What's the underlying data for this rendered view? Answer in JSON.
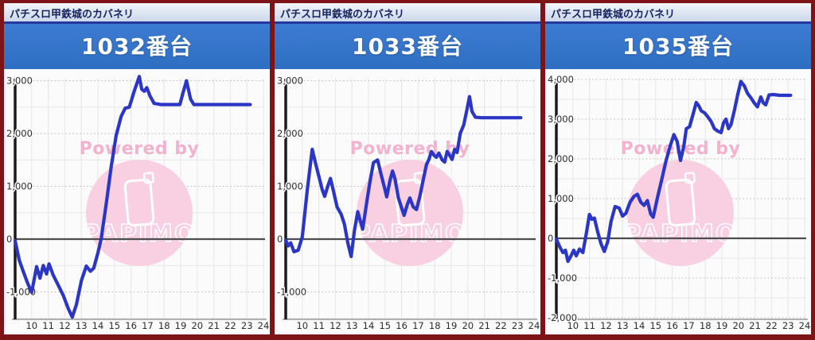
{
  "app_title": "パチスロ甲鉄城のカバネリ",
  "watermark": {
    "powered_by": "Powered by",
    "logo_text": "PAPIMO",
    "text_color": "#f3abc9",
    "circle_color": "#f8d0e2"
  },
  "colors": {
    "frame_border": "#7d1418",
    "header_blue": "#3273c9",
    "topbar_text": "#15245f",
    "line_blue": "#2b36c6",
    "axis_black": "#1b1b1b",
    "zero_line": "#4d4d4d",
    "grid_light": "#e7e7e7",
    "grid_dashed": "#c4c4c4",
    "tick_text": "#2b2b2b"
  },
  "panels": [
    {
      "machine_title": "1032番台",
      "chart_data": {
        "type": "line",
        "title": "1032番台",
        "xlabel": "",
        "ylabel": "",
        "grid": true,
        "xticks": [
          10,
          11,
          12,
          13,
          14,
          15,
          16,
          17,
          18,
          19,
          20,
          21,
          22,
          23,
          24
        ],
        "xlim": [
          9,
          24.3
        ],
        "ylim": [
          -1520,
          3040
        ],
        "yticks": [
          {
            "v": 3000,
            "label": "3,000"
          },
          {
            "v": 2000,
            "label": "2,000"
          },
          {
            "v": 1000,
            "label": "1,000"
          },
          {
            "v": 0,
            "label": "0"
          },
          {
            "v": -1000,
            "label": "-1,000"
          }
        ],
        "points": [
          [
            9.0,
            -30
          ],
          [
            9.25,
            -400
          ],
          [
            9.5,
            -620
          ],
          [
            9.75,
            -830
          ],
          [
            10.0,
            -1010
          ],
          [
            10.3,
            -520
          ],
          [
            10.5,
            -740
          ],
          [
            10.7,
            -500
          ],
          [
            10.9,
            -660
          ],
          [
            11.05,
            -470
          ],
          [
            11.3,
            -680
          ],
          [
            11.6,
            -870
          ],
          [
            11.9,
            -1060
          ],
          [
            12.2,
            -1310
          ],
          [
            12.45,
            -1480
          ],
          [
            12.7,
            -1240
          ],
          [
            13.0,
            -790
          ],
          [
            13.3,
            -510
          ],
          [
            13.55,
            -610
          ],
          [
            13.75,
            -550
          ],
          [
            14.0,
            -260
          ],
          [
            14.2,
            10
          ],
          [
            14.5,
            660
          ],
          [
            14.8,
            1360
          ],
          [
            15.1,
            1960
          ],
          [
            15.4,
            2320
          ],
          [
            15.65,
            2480
          ],
          [
            15.9,
            2500
          ],
          [
            16.2,
            2810
          ],
          [
            16.5,
            3080
          ],
          [
            16.65,
            2840
          ],
          [
            16.8,
            2800
          ],
          [
            16.95,
            2870
          ],
          [
            17.15,
            2710
          ],
          [
            17.4,
            2570
          ],
          [
            17.8,
            2550
          ],
          [
            18.4,
            2550
          ],
          [
            18.95,
            2550
          ],
          [
            19.15,
            2780
          ],
          [
            19.35,
            3000
          ],
          [
            19.6,
            2650
          ],
          [
            19.8,
            2550
          ],
          [
            20.5,
            2550
          ],
          [
            21.5,
            2550
          ],
          [
            22.5,
            2550
          ],
          [
            23.2,
            2550
          ]
        ]
      }
    },
    {
      "machine_title": "1033番台",
      "chart_data": {
        "type": "line",
        "title": "1033番台",
        "xlabel": "",
        "ylabel": "",
        "grid": true,
        "xticks": [
          10,
          11,
          12,
          13,
          14,
          15,
          16,
          17,
          18,
          19,
          20,
          21,
          22,
          23,
          24
        ],
        "xlim": [
          9,
          24.3
        ],
        "ylim": [
          -1520,
          3040
        ],
        "yticks": [
          {
            "v": 3000,
            "label": "3,000"
          },
          {
            "v": 2000,
            "label": "2,000"
          },
          {
            "v": 1000,
            "label": "1,000"
          },
          {
            "v": 0,
            "label": "0"
          },
          {
            "v": -1000,
            "label": "-1,000"
          }
        ],
        "points": [
          [
            9.0,
            -20
          ],
          [
            9.15,
            -130
          ],
          [
            9.3,
            -70
          ],
          [
            9.5,
            -240
          ],
          [
            9.75,
            -210
          ],
          [
            10.0,
            40
          ],
          [
            10.3,
            920
          ],
          [
            10.6,
            1700
          ],
          [
            10.8,
            1440
          ],
          [
            11.0,
            1190
          ],
          [
            11.2,
            940
          ],
          [
            11.35,
            810
          ],
          [
            11.55,
            1010
          ],
          [
            11.7,
            1150
          ],
          [
            11.9,
            890
          ],
          [
            12.1,
            610
          ],
          [
            12.35,
            470
          ],
          [
            12.55,
            280
          ],
          [
            12.75,
            -70
          ],
          [
            12.95,
            -330
          ],
          [
            13.15,
            160
          ],
          [
            13.35,
            520
          ],
          [
            13.5,
            350
          ],
          [
            13.65,
            190
          ],
          [
            13.9,
            710
          ],
          [
            14.1,
            1110
          ],
          [
            14.3,
            1450
          ],
          [
            14.55,
            1500
          ],
          [
            14.75,
            1240
          ],
          [
            14.95,
            990
          ],
          [
            15.1,
            800
          ],
          [
            15.3,
            1110
          ],
          [
            15.45,
            1290
          ],
          [
            15.6,
            1140
          ],
          [
            15.8,
            790
          ],
          [
            16.0,
            590
          ],
          [
            16.15,
            450
          ],
          [
            16.35,
            660
          ],
          [
            16.5,
            780
          ],
          [
            16.7,
            610
          ],
          [
            16.9,
            560
          ],
          [
            17.1,
            810
          ],
          [
            17.3,
            1110
          ],
          [
            17.5,
            1410
          ],
          [
            17.65,
            1510
          ],
          [
            17.8,
            1660
          ],
          [
            17.95,
            1590
          ],
          [
            18.1,
            1550
          ],
          [
            18.25,
            1630
          ],
          [
            18.45,
            1500
          ],
          [
            18.6,
            1460
          ],
          [
            18.75,
            1660
          ],
          [
            18.9,
            1590
          ],
          [
            19.05,
            1510
          ],
          [
            19.2,
            1700
          ],
          [
            19.35,
            1640
          ],
          [
            19.55,
            2010
          ],
          [
            19.75,
            2160
          ],
          [
            19.95,
            2460
          ],
          [
            20.1,
            2700
          ],
          [
            20.25,
            2420
          ],
          [
            20.45,
            2310
          ],
          [
            20.8,
            2300
          ],
          [
            21.6,
            2300
          ],
          [
            22.4,
            2300
          ],
          [
            23.2,
            2300
          ]
        ]
      }
    },
    {
      "machine_title": "1035番台",
      "chart_data": {
        "type": "line",
        "title": "1035番台",
        "xlabel": "",
        "ylabel": "",
        "grid": true,
        "xticks": [
          10,
          11,
          12,
          13,
          14,
          15,
          16,
          17,
          18,
          19,
          20,
          21,
          22,
          23,
          24
        ],
        "xlim": [
          9,
          24.3
        ],
        "ylim": [
          -2040,
          4020
        ],
        "yticks": [
          {
            "v": 4000,
            "label": "4,000"
          },
          {
            "v": 3000,
            "label": "3,000"
          },
          {
            "v": 2000,
            "label": "2,000"
          },
          {
            "v": 1000,
            "label": "1,000"
          },
          {
            "v": 0,
            "label": "0"
          },
          {
            "v": -1000,
            "label": "-1,000"
          },
          {
            "v": -2000,
            "label": "-2,000"
          }
        ],
        "points": [
          [
            9.0,
            -20
          ],
          [
            9.2,
            -210
          ],
          [
            9.4,
            -360
          ],
          [
            9.55,
            -300
          ],
          [
            9.7,
            -580
          ],
          [
            9.9,
            -430
          ],
          [
            10.05,
            -300
          ],
          [
            10.2,
            -440
          ],
          [
            10.4,
            -270
          ],
          [
            10.6,
            -360
          ],
          [
            10.8,
            90
          ],
          [
            11.0,
            600
          ],
          [
            11.15,
            480
          ],
          [
            11.3,
            510
          ],
          [
            11.5,
            160
          ],
          [
            11.7,
            -140
          ],
          [
            11.9,
            -330
          ],
          [
            12.1,
            -90
          ],
          [
            12.3,
            410
          ],
          [
            12.55,
            800
          ],
          [
            12.8,
            760
          ],
          [
            13.0,
            560
          ],
          [
            13.2,
            630
          ],
          [
            13.45,
            910
          ],
          [
            13.7,
            1060
          ],
          [
            13.9,
            1110
          ],
          [
            14.1,
            910
          ],
          [
            14.3,
            830
          ],
          [
            14.5,
            950
          ],
          [
            14.7,
            610
          ],
          [
            14.85,
            530
          ],
          [
            15.1,
            1010
          ],
          [
            15.35,
            1450
          ],
          [
            15.6,
            1910
          ],
          [
            15.85,
            2290
          ],
          [
            16.1,
            2610
          ],
          [
            16.3,
            2440
          ],
          [
            16.5,
            1960
          ],
          [
            16.7,
            2320
          ],
          [
            16.85,
            2760
          ],
          [
            17.05,
            2810
          ],
          [
            17.25,
            3110
          ],
          [
            17.45,
            3420
          ],
          [
            17.6,
            3340
          ],
          [
            17.75,
            3210
          ],
          [
            17.95,
            3160
          ],
          [
            18.15,
            3060
          ],
          [
            18.35,
            2940
          ],
          [
            18.55,
            2760
          ],
          [
            18.75,
            2700
          ],
          [
            18.95,
            2660
          ],
          [
            19.1,
            2910
          ],
          [
            19.25,
            3000
          ],
          [
            19.4,
            2760
          ],
          [
            19.55,
            2860
          ],
          [
            19.75,
            3210
          ],
          [
            19.95,
            3610
          ],
          [
            20.15,
            3950
          ],
          [
            20.35,
            3840
          ],
          [
            20.55,
            3650
          ],
          [
            20.75,
            3540
          ],
          [
            20.95,
            3410
          ],
          [
            21.15,
            3310
          ],
          [
            21.35,
            3560
          ],
          [
            21.5,
            3410
          ],
          [
            21.65,
            3360
          ],
          [
            21.85,
            3610
          ],
          [
            22.1,
            3620
          ],
          [
            22.5,
            3600
          ],
          [
            23.15,
            3600
          ]
        ]
      }
    }
  ]
}
